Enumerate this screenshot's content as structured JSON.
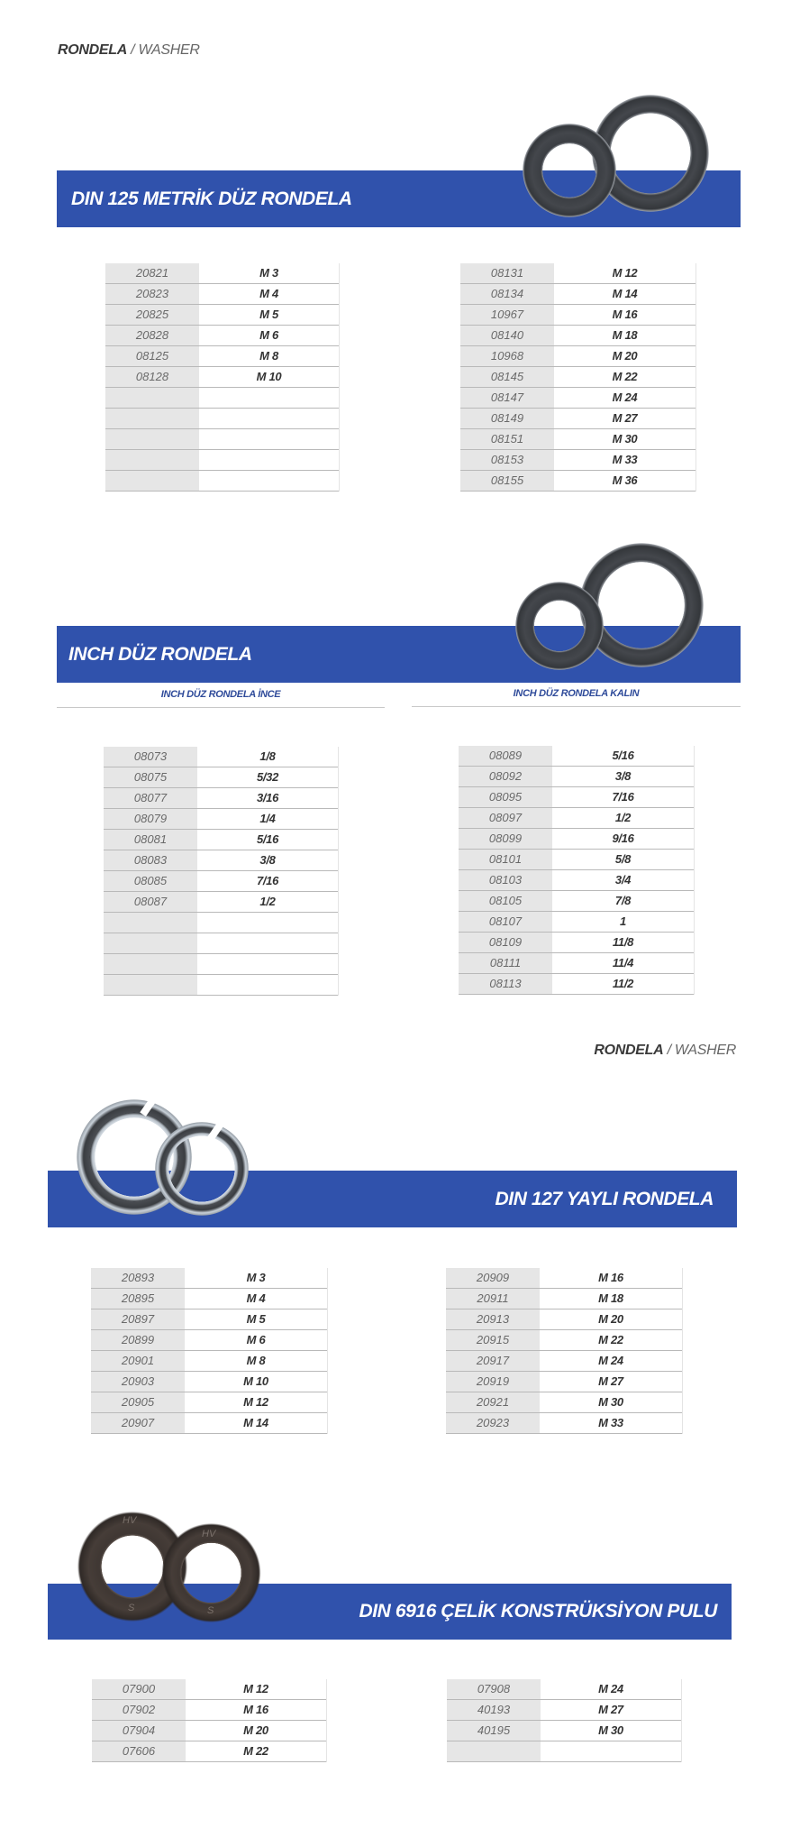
{
  "header_top": {
    "bold": "RONDELA",
    "light": "/ WASHER"
  },
  "header_mid": {
    "bold": "RONDELA",
    "light": "/ WASHER"
  },
  "colors": {
    "banner": "#3052ac",
    "code_cell": "#e6e6e6",
    "subheading": "#2f4b9a"
  },
  "sections": [
    {
      "title": "DIN 125 METRİK DÜZ RONDELA",
      "image": "flat-washers-icon",
      "tables": [
        [
          [
            "20821",
            "M 3"
          ],
          [
            "20823",
            "M 4"
          ],
          [
            "20825",
            "M 5"
          ],
          [
            "20828",
            "M 6"
          ],
          [
            "08125",
            "M 8"
          ],
          [
            "08128",
            "M 10"
          ],
          [
            "",
            ""
          ],
          [
            "",
            ""
          ],
          [
            "",
            ""
          ],
          [
            "",
            ""
          ],
          [
            "",
            ""
          ]
        ],
        [
          [
            "08131",
            "M 12"
          ],
          [
            "08134",
            "M 14"
          ],
          [
            "10967",
            "M 16"
          ],
          [
            "08140",
            "M 18"
          ],
          [
            "10968",
            "M 20"
          ],
          [
            "08145",
            "M 22"
          ],
          [
            "08147",
            "M 24"
          ],
          [
            "08149",
            "M 27"
          ],
          [
            "08151",
            "M 30"
          ],
          [
            "08153",
            "M 33"
          ],
          [
            "08155",
            "M 36"
          ]
        ]
      ]
    },
    {
      "title": "INCH  DÜZ RONDELA",
      "image": "flat-washers-icon",
      "subheadings": [
        "INCH DÜZ RONDELA İNCE",
        "INCH DÜZ RONDELA KALIN"
      ],
      "tables": [
        [
          [
            "08073",
            "1/8"
          ],
          [
            "08075",
            "5/32"
          ],
          [
            "08077",
            "3/16"
          ],
          [
            "08079",
            "1/4"
          ],
          [
            "08081",
            "5/16"
          ],
          [
            "08083",
            "3/8"
          ],
          [
            "08085",
            "7/16"
          ],
          [
            "08087",
            "1/2"
          ],
          [
            "",
            ""
          ],
          [
            "",
            ""
          ],
          [
            "",
            ""
          ],
          [
            "",
            ""
          ]
        ],
        [
          [
            "08089",
            "5/16"
          ],
          [
            "08092",
            "3/8"
          ],
          [
            "08095",
            "7/16"
          ],
          [
            "08097",
            "1/2"
          ],
          [
            "08099",
            "9/16"
          ],
          [
            "08101",
            "5/8"
          ],
          [
            "08103",
            "3/4"
          ],
          [
            "08105",
            "7/8"
          ],
          [
            "08107",
            "1"
          ],
          [
            "08109",
            "11/8"
          ],
          [
            "08111",
            "11/4"
          ],
          [
            "08113",
            "11/2"
          ]
        ]
      ]
    },
    {
      "title": "DIN 127 YAYLI RONDELA",
      "image": "spring-washers-icon",
      "tables": [
        [
          [
            "20893",
            "M 3"
          ],
          [
            "20895",
            "M 4"
          ],
          [
            "20897",
            "M 5"
          ],
          [
            "20899",
            "M 6"
          ],
          [
            "20901",
            "M 8"
          ],
          [
            "20903",
            "M 10"
          ],
          [
            "20905",
            "M 12"
          ],
          [
            "20907",
            "M 14"
          ]
        ],
        [
          [
            "20909",
            "M 16"
          ],
          [
            "20911",
            "M 18"
          ],
          [
            "20913",
            "M 20"
          ],
          [
            "20915",
            "M 22"
          ],
          [
            "20917",
            "M 24"
          ],
          [
            "20919",
            "M 27"
          ],
          [
            "20921",
            "M 30"
          ],
          [
            "20923",
            "M 33"
          ]
        ]
      ]
    },
    {
      "title": "DIN 6916 ÇELİK KONSTRÜKSİYON PULU",
      "image": "structural-washers-icon",
      "stamp_marks": [
        "HV",
        "S"
      ],
      "tables": [
        [
          [
            "07900",
            "M 12"
          ],
          [
            "07902",
            "M 16"
          ],
          [
            "07904",
            "M 20"
          ],
          [
            "07606",
            "M 22"
          ]
        ],
        [
          [
            "07908",
            "M 24"
          ],
          [
            "40193",
            "M 27"
          ],
          [
            "40195",
            "M 30"
          ],
          [
            "",
            ""
          ]
        ]
      ]
    }
  ]
}
